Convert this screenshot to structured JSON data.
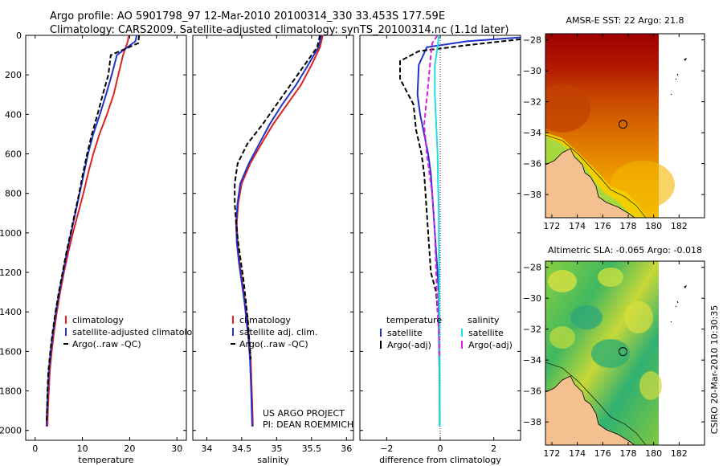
{
  "header": {
    "line1": "Argo profile: AO 5901798_97 12-Mar-2010 20100314_330 33.453S 177.59E",
    "line2": "Climatology: CARS2009. Satellite-adjusted climatology: synTS_20100314.nc (1.1d later)"
  },
  "credits": {
    "project": "US ARGO PROJECT",
    "pi": "PI: DEAN ROEMMICH",
    "side": "CSIRO 20-Mar-2010 10:30:35"
  },
  "colors": {
    "red": "#dd2222",
    "blue": "#2233cc",
    "black": "#000000",
    "cyan": "#22dddd",
    "magenta": "#dd22dd",
    "land": "#f4c090"
  },
  "chart_data": [
    {
      "type": "line",
      "xlabel": "temperature",
      "xlim": [
        -2,
        32
      ],
      "ylim": [
        2050,
        0
      ],
      "xticks": [
        0,
        10,
        20,
        30
      ],
      "yticks": [
        0,
        200,
        400,
        600,
        800,
        1000,
        1200,
        1400,
        1600,
        1800,
        2000
      ],
      "legend": [
        "climatology",
        "satellite-adjusted climatology",
        "Argo(..raw -QC)"
      ],
      "series": [
        {
          "name": "climatology",
          "color": "red",
          "dash": false,
          "x": [
            19.8,
            19.6,
            18.6,
            17.6,
            16.6,
            15.2,
            13.6,
            12.3,
            11.2,
            10.2,
            9.1,
            8.0,
            7.0,
            6.1,
            5.3,
            4.6,
            4.0,
            3.5,
            3.1,
            2.9,
            2.7,
            2.6
          ],
          "y": [
            0,
            30,
            100,
            200,
            300,
            400,
            500,
            600,
            700,
            800,
            900,
            1000,
            1100,
            1200,
            1300,
            1400,
            1500,
            1600,
            1700,
            1800,
            1900,
            1980
          ]
        },
        {
          "name": "satellite-adjusted climatology",
          "color": "blue",
          "dash": false,
          "x": [
            21.5,
            21.2,
            17.3,
            16.2,
            15.0,
            13.7,
            12.3,
            11.2,
            10.3,
            9.4,
            8.5,
            7.6,
            6.7,
            5.9,
            5.1,
            4.4,
            3.8,
            3.3,
            2.9,
            2.7,
            2.5,
            2.4
          ],
          "y": [
            0,
            30,
            100,
            200,
            300,
            400,
            500,
            600,
            700,
            800,
            900,
            1000,
            1100,
            1200,
            1300,
            1400,
            1500,
            1600,
            1700,
            1800,
            1900,
            1980
          ]
        },
        {
          "name": "Argo(..raw -QC)",
          "color": "black",
          "dash": true,
          "x": [
            22.0,
            21.8,
            16.0,
            15.5,
            14.3,
            13.2,
            12.0,
            11.0,
            10.1,
            9.3,
            8.4,
            7.5,
            6.6,
            5.8,
            5.0,
            4.3,
            3.7,
            3.2,
            2.8,
            2.6,
            2.5,
            2.4
          ],
          "y": [
            0,
            40,
            100,
            200,
            300,
            400,
            500,
            600,
            700,
            800,
            900,
            1000,
            1100,
            1200,
            1300,
            1400,
            1500,
            1600,
            1700,
            1800,
            1900,
            1960
          ]
        }
      ]
    },
    {
      "type": "line",
      "xlabel": "salinity",
      "xlim": [
        33.8,
        36.1
      ],
      "ylim": [
        2050,
        0
      ],
      "xticks": [
        34,
        34.5,
        35,
        35.5,
        36
      ],
      "yticks": [
        0,
        200,
        400,
        600,
        800,
        1000,
        1200,
        1400,
        1600,
        1800,
        2000
      ],
      "legend": [
        "climatology",
        "satellite adj. clim.",
        "Argo(..raw -QC)"
      ],
      "series": [
        {
          "name": "climatology",
          "color": "red",
          "dash": false,
          "x": [
            35.66,
            35.62,
            35.5,
            35.35,
            35.15,
            34.95,
            34.78,
            34.62,
            34.5,
            34.45,
            34.43,
            34.44,
            34.47,
            34.51,
            34.55,
            34.58,
            34.61,
            34.63,
            34.64,
            34.65,
            34.66
          ],
          "y": [
            0,
            60,
            150,
            250,
            350,
            450,
            550,
            650,
            750,
            850,
            950,
            1050,
            1150,
            1250,
            1350,
            1450,
            1550,
            1650,
            1750,
            1850,
            1980
          ]
        },
        {
          "name": "satellite adj. clim.",
          "color": "blue",
          "dash": false,
          "x": [
            35.64,
            35.6,
            35.45,
            35.28,
            35.08,
            34.9,
            34.75,
            34.6,
            34.48,
            34.44,
            34.42,
            34.43,
            34.46,
            34.5,
            34.54,
            34.57,
            34.6,
            34.62,
            34.63,
            34.64,
            34.65
          ],
          "y": [
            0,
            60,
            150,
            250,
            350,
            450,
            550,
            650,
            750,
            850,
            950,
            1050,
            1150,
            1250,
            1350,
            1450,
            1550,
            1650,
            1750,
            1850,
            1980
          ]
        },
        {
          "name": "Argo(..raw -QC)",
          "color": "black",
          "dash": true,
          "x": [
            35.62,
            35.58,
            35.4,
            35.2,
            35.0,
            34.8,
            34.58,
            34.44,
            34.4,
            34.4,
            34.42,
            34.45,
            34.49,
            34.53,
            34.56,
            34.59,
            34.61,
            34.63
          ],
          "y": [
            0,
            60,
            150,
            250,
            350,
            450,
            550,
            650,
            750,
            850,
            950,
            1050,
            1150,
            1250,
            1350,
            1450,
            1550,
            1640
          ]
        }
      ]
    },
    {
      "type": "line",
      "xlabel": "difference from climatology",
      "xlim": [
        -3,
        3
      ],
      "ylim": [
        2050,
        0
      ],
      "xticks": [
        -2,
        0,
        2
      ],
      "yticks": [
        0,
        200,
        400,
        600,
        800,
        1000,
        1200,
        1400,
        1600,
        1800,
        2000
      ],
      "legend_titles": [
        "temperature",
        "salinity"
      ],
      "legend": [
        "satellite",
        "Argo(-adj)",
        "satellite",
        "Argo(-adj)"
      ],
      "series": [
        {
          "name": "satellite",
          "group": "temperature",
          "color": "blue",
          "dash": false,
          "x": [
            3.0,
            1.0,
            -0.5,
            -0.8,
            -0.85,
            -0.75,
            -0.6,
            -0.45,
            -0.35,
            -0.3,
            -0.25,
            -0.2,
            -0.15,
            -0.1,
            -0.05,
            -0.05,
            -0.05,
            -0.03,
            -0.02
          ],
          "y": [
            10,
            30,
            60,
            150,
            300,
            400,
            500,
            600,
            700,
            800,
            900,
            1000,
            1100,
            1200,
            1300,
            1400,
            1500,
            1700,
            1980
          ]
        },
        {
          "name": "Argo(-adj)",
          "group": "temperature",
          "color": "black",
          "dash": true,
          "x": [
            3.0,
            1.0,
            -0.8,
            -1.5,
            -1.5,
            -1.0,
            -0.9,
            -0.7,
            -0.6,
            -0.55,
            -0.5,
            -0.45,
            -0.4,
            -0.35,
            -0.15,
            -0.1
          ],
          "y": [
            20,
            50,
            80,
            130,
            220,
            350,
            480,
            600,
            700,
            800,
            900,
            1000,
            1100,
            1200,
            1300,
            1400
          ]
        },
        {
          "name": "satellite",
          "group": "salinity",
          "color": "cyan",
          "dash": false,
          "x": [
            -0.05,
            -0.1,
            -0.2,
            -0.2,
            -0.15,
            -0.1,
            -0.08,
            -0.05,
            -0.05,
            -0.04,
            -0.03,
            -0.02,
            -0.02,
            -0.02
          ],
          "y": [
            0,
            60,
            150,
            300,
            450,
            600,
            750,
            900,
            1050,
            1200,
            1400,
            1600,
            1800,
            1980
          ]
        },
        {
          "name": "Argo(-adj)",
          "group": "salinity",
          "color": "magenta",
          "dash": true,
          "x": [
            -0.1,
            -0.3,
            -0.35,
            -0.45,
            -0.6,
            -0.5,
            -0.3,
            -0.2,
            -0.15,
            -0.1,
            -0.05,
            -0.03
          ],
          "y": [
            0,
            40,
            100,
            250,
            450,
            600,
            800,
            1000,
            1200,
            1400,
            1500,
            1620
          ]
        }
      ]
    },
    {
      "type": "heatmap",
      "title": "AMSR-E SST: 22 Argo: 21.8",
      "xlim": [
        171.5,
        184
      ],
      "ylim": [
        -39.5,
        -27.6
      ],
      "xticks": [
        172,
        174,
        176,
        178,
        180,
        182
      ],
      "yticks": [
        -28,
        -30,
        -32,
        -34,
        -36,
        -38
      ],
      "argo_position": [
        177.59,
        -33.453
      ]
    },
    {
      "type": "heatmap",
      "title": "Altimetric SLA: -0.065 Argo: -0.018",
      "xlim": [
        171.5,
        184
      ],
      "ylim": [
        -39.5,
        -27.6
      ],
      "xticks": [
        172,
        174,
        176,
        178,
        180,
        182
      ],
      "yticks": [
        -28,
        -30,
        -32,
        -34,
        -36,
        -38
      ],
      "argo_position": [
        177.59,
        -33.453
      ]
    }
  ]
}
